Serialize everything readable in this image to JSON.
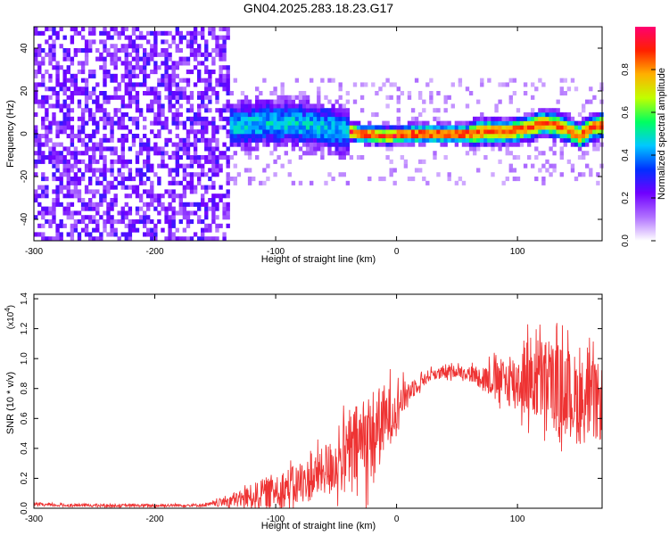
{
  "page": {
    "title": "GN04.2025.283.18.23.G17"
  },
  "chart_data": [
    {
      "type": "heatmap",
      "title": "GN04.2025.283.18.23.G17",
      "xlabel": "Height of straight line (km)",
      "ylabel": "Frequency (Hz)",
      "xlim": [
        -300,
        170
      ],
      "ylim": [
        -50,
        50
      ],
      "xticks": [
        -300,
        -200,
        -100,
        0,
        100
      ],
      "yticks": [
        -40,
        -20,
        0,
        20,
        40
      ],
      "colorbar": {
        "label": "Normalized spectral amplitude",
        "range": [
          0,
          1
        ],
        "ticks": [
          0.0,
          0.2,
          0.4,
          0.6,
          0.8
        ],
        "colors": [
          "#ffffff",
          "#b070ff",
          "#7000ff",
          "#0030ff",
          "#00c8ff",
          "#00ff60",
          "#c0ff00",
          "#ffb000",
          "#ff2000",
          "#ff0070"
        ]
      },
      "ridge": {
        "description_free": true,
        "x": [
          -170,
          -150,
          -130,
          -110,
          -90,
          -70,
          -50,
          -30,
          -10,
          10,
          30,
          50,
          60,
          70,
          80,
          90,
          100,
          110,
          120,
          130,
          140,
          150,
          160,
          170
        ],
        "y": [
          -2,
          1,
          3,
          4,
          4,
          3,
          1,
          -1,
          -2,
          -1,
          -1,
          -1,
          -1,
          0,
          0,
          0,
          1,
          2,
          4,
          3,
          1,
          -2,
          2,
          3
        ]
      },
      "noise_region": {
        "x_from": -300,
        "x_to": -140
      }
    },
    {
      "type": "line",
      "xlabel": "Height of straight line (km)",
      "ylabel": "SNR (10 * v/v)",
      "y_scale_label": "(x10",
      "y_scale_exponent": "4",
      "xlim": [
        -300,
        170
      ],
      "ylim": [
        0,
        1.43
      ],
      "xticks": [
        -300,
        -200,
        -100,
        0,
        100
      ],
      "yticks": [
        0.0,
        0.2,
        0.4,
        0.6,
        0.8,
        1.0,
        1.2,
        1.4
      ],
      "ytick_labels": [
        "0.0",
        "0.2",
        "0.4",
        "0.6",
        "0.8",
        "1.0",
        "1.2",
        "1.4"
      ],
      "color": "#ee3333",
      "series": [
        {
          "x": [
            -300,
            -280,
            -260,
            -240,
            -220,
            -200,
            -180,
            -160,
            -150,
            -140,
            -130,
            -120,
            -110,
            -100,
            -90,
            -80,
            -70,
            -60,
            -50,
            -40,
            -30,
            -20,
            -10,
            0,
            10,
            20,
            30,
            40,
            50,
            60,
            70,
            80,
            90,
            100,
            110,
            120,
            130,
            140,
            150,
            160,
            170
          ],
          "mean": [
            0.025,
            0.02,
            0.02,
            0.018,
            0.018,
            0.018,
            0.02,
            0.02,
            0.03,
            0.05,
            0.06,
            0.08,
            0.1,
            0.12,
            0.14,
            0.16,
            0.2,
            0.25,
            0.3,
            0.36,
            0.44,
            0.5,
            0.58,
            0.68,
            0.78,
            0.85,
            0.9,
            0.9,
            0.92,
            0.9,
            0.88,
            0.86,
            0.85,
            0.85,
            0.88,
            0.85,
            0.82,
            0.78,
            0.72,
            0.72,
            0.7
          ],
          "spread": [
            0.01,
            0.01,
            0.01,
            0.01,
            0.01,
            0.01,
            0.01,
            0.01,
            0.02,
            0.04,
            0.06,
            0.08,
            0.1,
            0.12,
            0.13,
            0.14,
            0.15,
            0.16,
            0.2,
            0.25,
            0.3,
            0.3,
            0.25,
            0.15,
            0.08,
            0.05,
            0.04,
            0.04,
            0.04,
            0.05,
            0.08,
            0.12,
            0.16,
            0.2,
            0.28,
            0.3,
            0.3,
            0.3,
            0.3,
            0.28,
            0.25
          ]
        }
      ]
    }
  ]
}
